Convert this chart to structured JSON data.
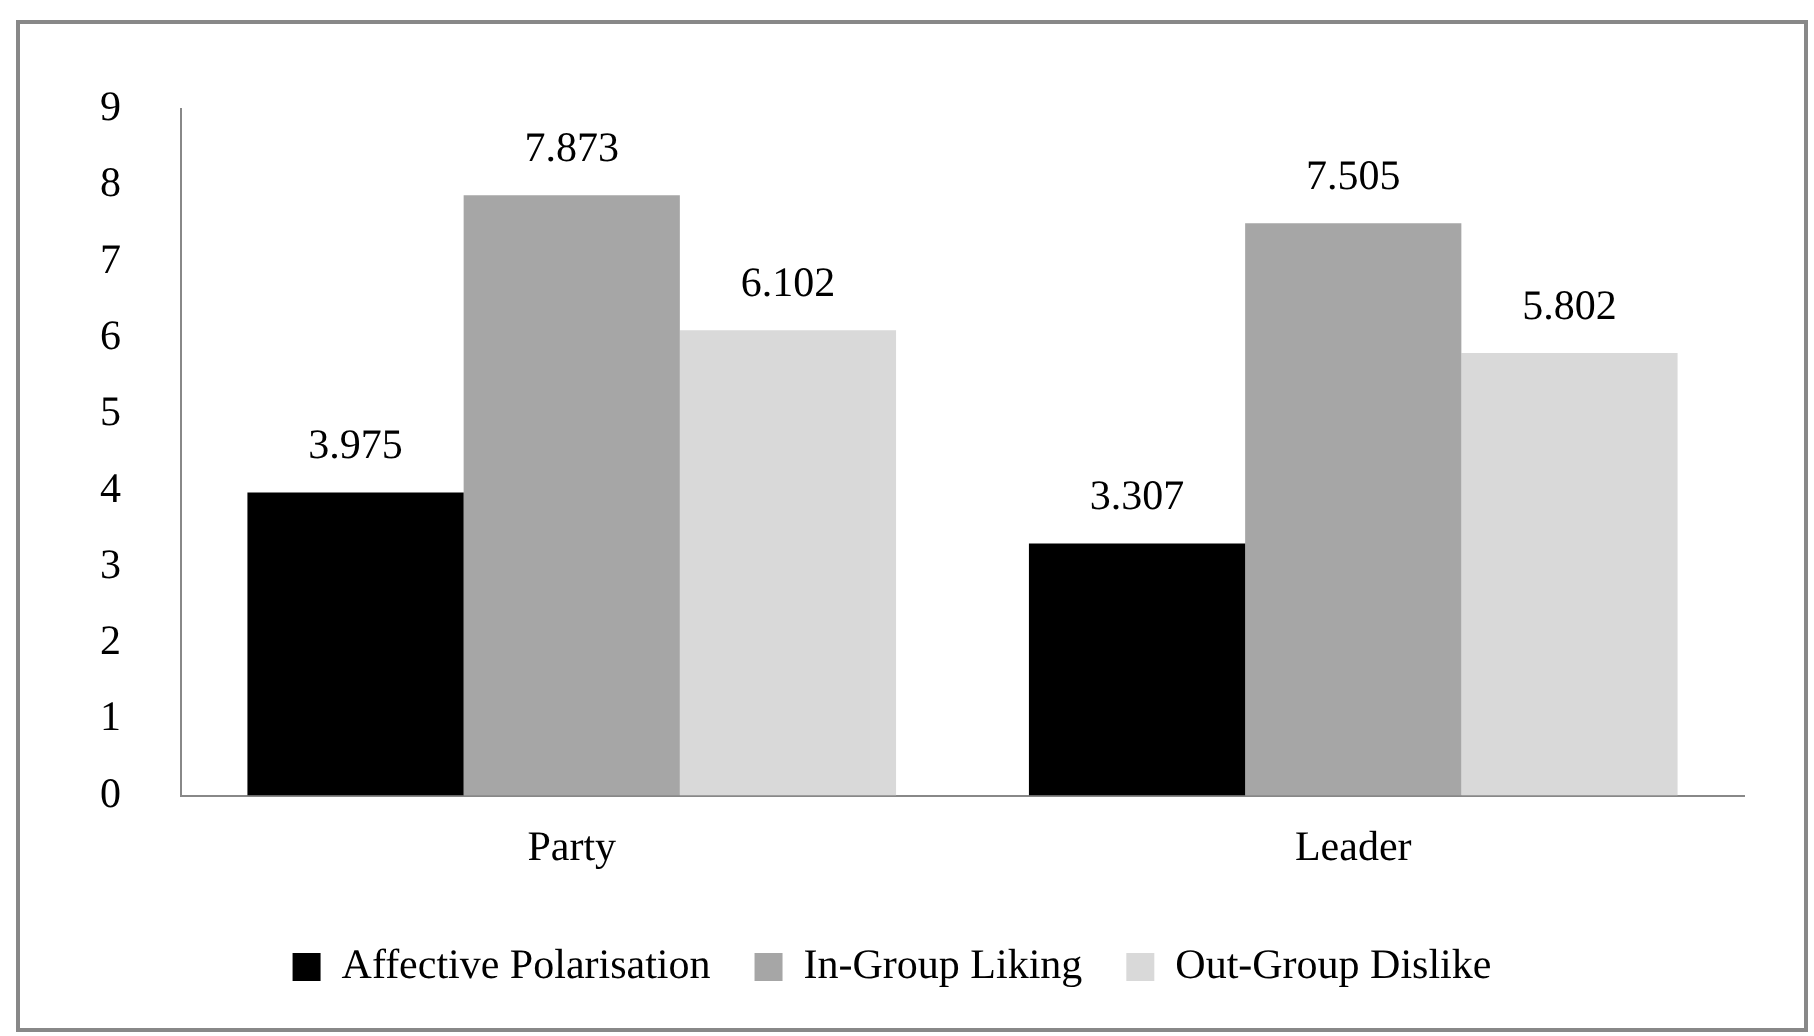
{
  "chart_data": {
    "type": "bar",
    "categories": [
      "Party",
      "Leader"
    ],
    "series": [
      {
        "name": "Affective Polarisation",
        "color": "#000000",
        "values": [
          3.975,
          3.307
        ]
      },
      {
        "name": "In-Group Liking",
        "color": "#a6a6a6",
        "values": [
          7.873,
          7.505
        ]
      },
      {
        "name": "Out-Group Dislike",
        "color": "#d9d9d9",
        "values": [
          6.102,
          5.802
        ]
      }
    ],
    "ylim": [
      0,
      9
    ],
    "yticks": [
      0,
      1,
      2,
      3,
      4,
      5,
      6,
      7,
      8,
      9
    ],
    "grid": false,
    "legend": "bottom",
    "data_labels": true
  }
}
